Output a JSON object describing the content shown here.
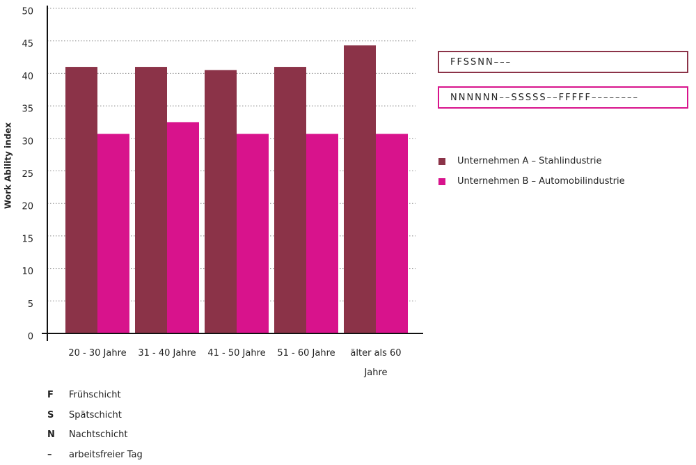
{
  "chart_data": {
    "type": "bar",
    "y_label": "Work Ability index",
    "categories": [
      "20 - 30 Jahre",
      "31 - 40 Jahre",
      "41 - 50 Jahre",
      "51 - 60 Jahre",
      "älter als 60 Jahre"
    ],
    "series": [
      {
        "name": "Unternehmen A – Stahlindustrie",
        "color": "#8b3348",
        "values": [
          41,
          41,
          40.5,
          41,
          44.3
        ]
      },
      {
        "name": "Unternehmen B – Automobilindustrie",
        "color": "#d8138c",
        "values": [
          30.7,
          32.5,
          30.7,
          30.7,
          30.7
        ]
      }
    ],
    "ylim": [
      0,
      50
    ],
    "yticks": [
      0,
      5,
      10,
      15,
      20,
      25,
      30,
      35,
      40,
      45,
      50
    ],
    "grid": true,
    "shift_patterns": [
      "FFSSNN–––",
      "NNNNNN––SSSSS––FFFFF––––––––"
    ],
    "glossary": [
      {
        "key": "F",
        "label": "Frühschicht"
      },
      {
        "key": "S",
        "label": "Spätschicht"
      },
      {
        "key": "N",
        "label": "Nachtschicht"
      },
      {
        "key": "–",
        "label": "arbeitsfreier Tag"
      }
    ]
  }
}
